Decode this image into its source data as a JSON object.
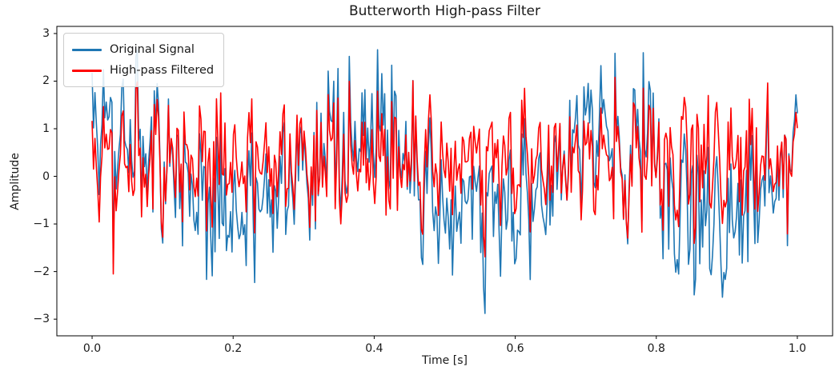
{
  "figure": {
    "title": "Butterworth High-pass Filter",
    "background": "#ffffff",
    "text_color": "#1a1a1a",
    "spine_color": "#000000"
  },
  "chart_data": {
    "type": "line",
    "title": "Butterworth High-pass Filter",
    "xlabel": "Time [s]",
    "ylabel": "Amplitude",
    "xlim": [
      -0.05,
      1.05
    ],
    "ylim": [
      -3.35,
      3.15
    ],
    "x_ticks": {
      "values": [
        0.0,
        0.2,
        0.4,
        0.6,
        0.8,
        1.0
      ],
      "labels": [
        "0.0",
        "0.2",
        "0.4",
        "0.6",
        "0.8",
        "1.0"
      ]
    },
    "y_ticks": {
      "values": [
        -3,
        -2,
        -1,
        0,
        1,
        2,
        3
      ],
      "labels": [
        "−3",
        "−2",
        "−1",
        "0",
        "1",
        "2",
        "3"
      ]
    },
    "grid": false,
    "legend": {
      "position": "upper-left",
      "frame": true,
      "labels": [
        "Original Signal",
        "High-pass Filtered"
      ]
    },
    "series": [
      {
        "name": "Original Signal",
        "color": "#1f77b4",
        "linewidth": 1.6,
        "x_range": [
          0,
          1
        ],
        "approx_value_range": [
          -2.88,
          2.66
        ],
        "description": "dense noisy broadband signal sampled over 0-1 s"
      },
      {
        "name": "High-pass Filtered",
        "color": "#ff0000",
        "linewidth": 1.6,
        "x_range": [
          0,
          1
        ],
        "approx_value_range": [
          -2.05,
          2.08
        ],
        "description": "Butterworth high-pass filtered version of the original signal (low-frequency content removed), drawn over the original"
      }
    ],
    "generator": {
      "note": "signals are unreadable dense noise; recreated deterministically from these parameters",
      "seed": 42,
      "n_points": 500,
      "low_freq_hz": 3,
      "low_amp": 0.8,
      "low_phase": 0.7,
      "mid_freq_hz": 44,
      "mid_amp": 0.55,
      "mid_phase": 1.9,
      "noise_std": 0.85,
      "highpass_window": 21,
      "original_range": [
        -2.88,
        2.66
      ],
      "filtered_range": [
        -2.05,
        2.08
      ]
    }
  }
}
